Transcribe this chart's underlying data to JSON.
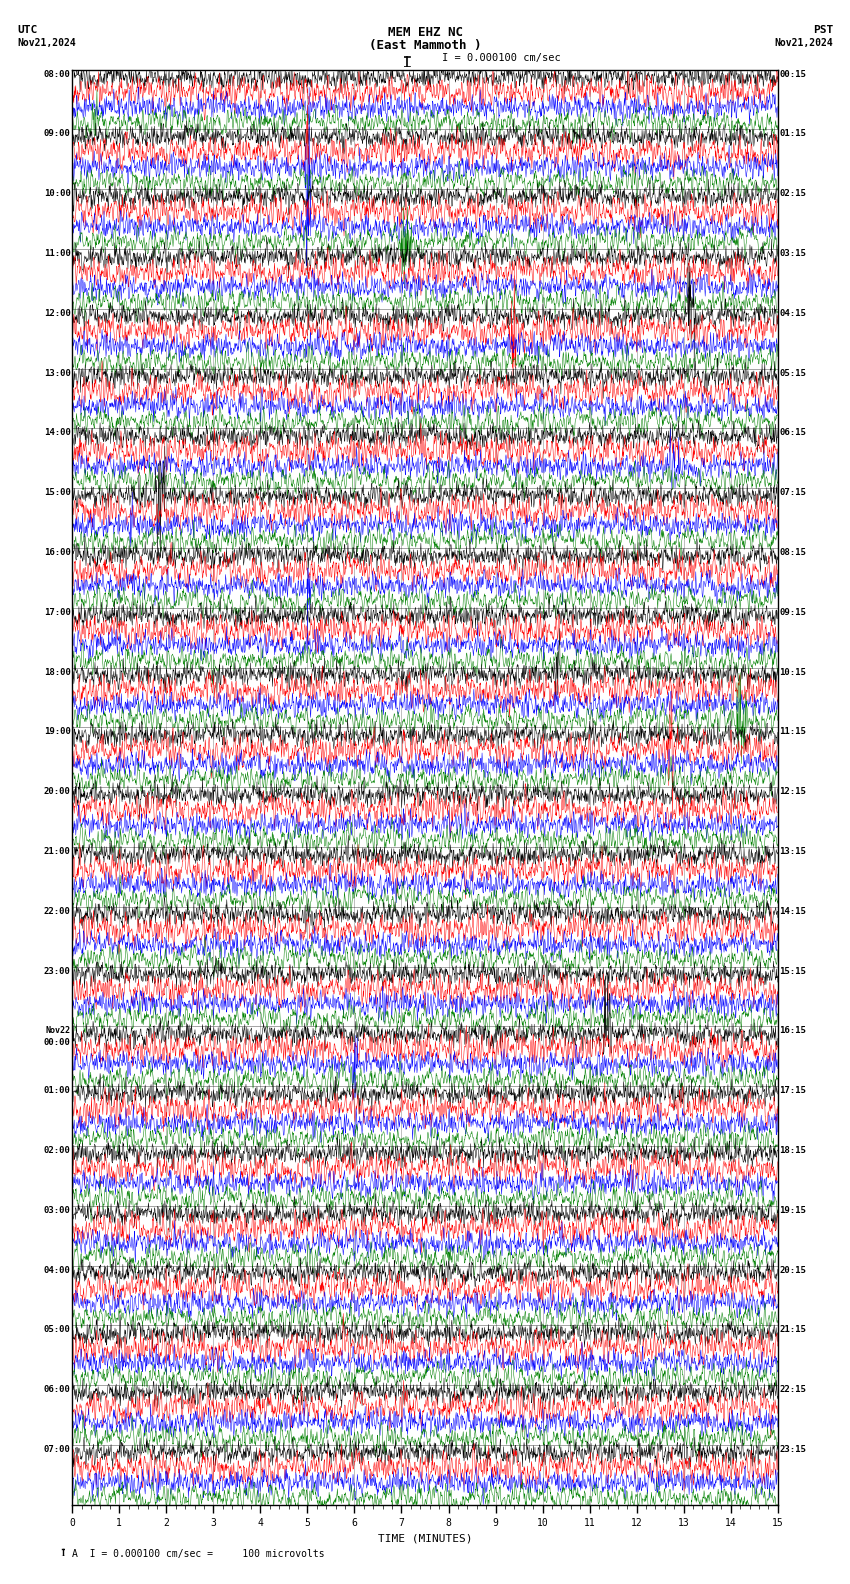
{
  "title_line1": "MEM EHZ NC",
  "title_line2": "(East Mammoth )",
  "scale_text": "I = 0.000100 cm/sec",
  "utc_label": "UTC",
  "pst_label": "PST",
  "date_left": "Nov21,2024",
  "date_right": "Nov21,2024",
  "xlabel": "TIME (MINUTES)",
  "footer_text": "A  I = 0.000100 cm/sec =     100 microvolts",
  "utc_times_labeled": [
    "08:00",
    "09:00",
    "10:00",
    "11:00",
    "12:00",
    "13:00",
    "14:00",
    "15:00",
    "16:00",
    "17:00",
    "18:00",
    "19:00",
    "20:00",
    "21:00",
    "22:00",
    "23:00",
    "Nov22\n00:00",
    "01:00",
    "02:00",
    "03:00",
    "04:00",
    "05:00",
    "06:00",
    "07:00"
  ],
  "pst_times_labeled": [
    "00:15",
    "01:15",
    "02:15",
    "03:15",
    "04:15",
    "05:15",
    "06:15",
    "07:15",
    "08:15",
    "09:15",
    "10:15",
    "11:15",
    "12:15",
    "13:15",
    "14:15",
    "15:15",
    "16:15",
    "17:15",
    "18:15",
    "19:15",
    "20:15",
    "21:15",
    "22:15",
    "23:15"
  ],
  "colors": [
    "black",
    "red",
    "blue",
    "green"
  ],
  "n_hours": 24,
  "n_traces_per_hour": 4,
  "time_minutes": 15,
  "bg_color": "white",
  "fig_width": 8.5,
  "fig_height": 15.84,
  "dpi": 100,
  "noise_seed": 42
}
